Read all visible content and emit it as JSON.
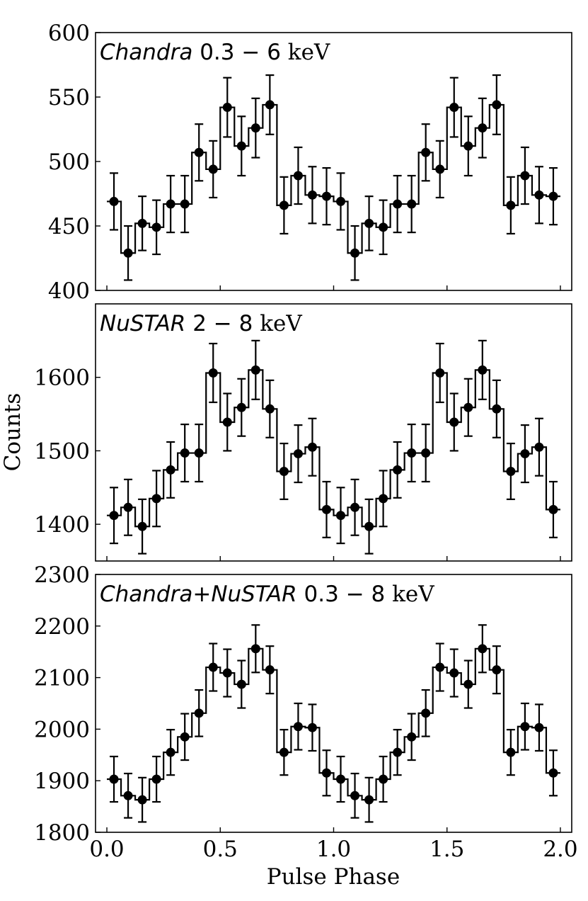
{
  "figure": {
    "ylabel": "Counts",
    "xlabel": "Pulse Phase"
  },
  "chart_data": [
    {
      "type": "line",
      "title_italic": "Chandra",
      "title_plain": " 0.3 − 6 ",
      "title_unit": "keV",
      "ylim": [
        400,
        600
      ],
      "yticks": [
        400,
        450,
        500,
        550,
        600
      ],
      "xlim": [
        -0.05,
        2.05
      ],
      "xticks": [
        0.0,
        0.5,
        1.0,
        1.5,
        2.0
      ],
      "xtick_labels": [],
      "bin_width": 0.0625,
      "x": [
        0.03125,
        0.09375,
        0.15625,
        0.21875,
        0.28125,
        0.34375,
        0.40625,
        0.46875,
        0.53125,
        0.59375,
        0.65625,
        0.71875,
        0.78125,
        0.84375,
        0.90625,
        0.96875,
        1.03125,
        1.09375,
        1.15625,
        1.21875,
        1.28125,
        1.34375,
        1.40625,
        1.46875,
        1.53125,
        1.59375,
        1.65625,
        1.71875,
        1.78125,
        1.84375,
        1.90625,
        1.96875
      ],
      "y": [
        469,
        429,
        452,
        449,
        467,
        467,
        507,
        494,
        542,
        512,
        526,
        544,
        466,
        489,
        474,
        473,
        469,
        429,
        452,
        449,
        467,
        467,
        507,
        494,
        542,
        512,
        526,
        544,
        466,
        489,
        474,
        473
      ],
      "yerr": [
        22,
        21,
        21,
        21,
        22,
        22,
        22,
        22,
        23,
        23,
        23,
        23,
        22,
        22,
        22,
        22,
        22,
        21,
        21,
        21,
        22,
        22,
        22,
        22,
        23,
        23,
        23,
        23,
        22,
        22,
        22,
        22
      ]
    },
    {
      "type": "line",
      "title_italic": "NuSTAR",
      "title_plain": " 2 − 8 ",
      "title_unit": "keV",
      "ylim": [
        1350,
        1700
      ],
      "yticks": [
        1400,
        1500,
        1600
      ],
      "xlim": [
        -0.05,
        2.05
      ],
      "xticks": [
        0.0,
        0.5,
        1.0,
        1.5,
        2.0
      ],
      "xtick_labels": [],
      "bin_width": 0.0625,
      "x": [
        0.03125,
        0.09375,
        0.15625,
        0.21875,
        0.28125,
        0.34375,
        0.40625,
        0.46875,
        0.53125,
        0.59375,
        0.65625,
        0.71875,
        0.78125,
        0.84375,
        0.90625,
        0.96875,
        1.03125,
        1.09375,
        1.15625,
        1.21875,
        1.28125,
        1.34375,
        1.40625,
        1.46875,
        1.53125,
        1.59375,
        1.65625,
        1.71875,
        1.78125,
        1.84375,
        1.90625,
        1.96875
      ],
      "y": [
        1412,
        1423,
        1397,
        1435,
        1474,
        1497,
        1497,
        1606,
        1539,
        1559,
        1610,
        1557,
        1472,
        1496,
        1505,
        1420,
        1412,
        1423,
        1397,
        1435,
        1474,
        1497,
        1497,
        1606,
        1539,
        1559,
        1610,
        1557,
        1472,
        1496,
        1505,
        1420
      ],
      "yerr": [
        38,
        38,
        37,
        38,
        38,
        39,
        39,
        40,
        39,
        39,
        40,
        39,
        38,
        39,
        39,
        38,
        38,
        38,
        37,
        38,
        38,
        39,
        39,
        40,
        39,
        39,
        40,
        39,
        38,
        39,
        39,
        38
      ]
    },
    {
      "type": "line",
      "title_italic": "Chandra+NuSTAR",
      "title_plain": " 0.3 − 8 ",
      "title_unit": "keV",
      "ylim": [
        1800,
        2300
      ],
      "yticks": [
        1800,
        1900,
        2000,
        2100,
        2200,
        2300
      ],
      "xlim": [
        -0.05,
        2.05
      ],
      "xticks": [
        0.0,
        0.5,
        1.0,
        1.5,
        2.0
      ],
      "xtick_labels": [
        "0.0",
        "0.5",
        "1.0",
        "1.5",
        "2.0"
      ],
      "bin_width": 0.0625,
      "x": [
        0.03125,
        0.09375,
        0.15625,
        0.21875,
        0.28125,
        0.34375,
        0.40625,
        0.46875,
        0.53125,
        0.59375,
        0.65625,
        0.71875,
        0.78125,
        0.84375,
        0.90625,
        0.96875,
        1.03125,
        1.09375,
        1.15625,
        1.21875,
        1.28125,
        1.34375,
        1.40625,
        1.46875,
        1.53125,
        1.59375,
        1.65625,
        1.71875,
        1.78125,
        1.84375,
        1.90625,
        1.96875
      ],
      "y": [
        1903,
        1871,
        1863,
        1903,
        1955,
        1985,
        2031,
        2120,
        2109,
        2087,
        2156,
        2115,
        1955,
        2005,
        2003,
        1915,
        1903,
        1871,
        1863,
        1903,
        1955,
        1985,
        2031,
        2120,
        2109,
        2087,
        2156,
        2115,
        1955,
        2005,
        2003,
        1915
      ],
      "yerr": [
        44,
        43,
        43,
        44,
        44,
        45,
        45,
        46,
        46,
        46,
        46,
        46,
        44,
        45,
        45,
        44,
        44,
        43,
        43,
        44,
        44,
        45,
        45,
        46,
        46,
        46,
        46,
        46,
        44,
        45,
        45,
        44
      ]
    }
  ]
}
